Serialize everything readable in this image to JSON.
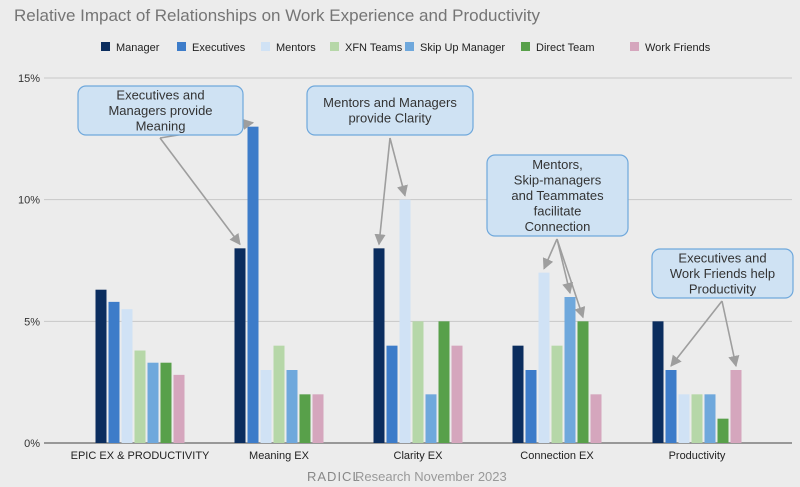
{
  "chart_data": {
    "type": "bar",
    "title": "Relative Impact of Relationships on Work Experience and Productivity",
    "categories": [
      "EPIC EX & PRODUCTIVITY",
      "Meaning EX",
      "Clarity EX",
      "Connection EX",
      "Productivity"
    ],
    "series": [
      {
        "name": "Manager",
        "color": "#0b2d5e",
        "values": [
          6.3,
          8,
          8,
          4,
          5
        ]
      },
      {
        "name": "Executives",
        "color": "#3d7cc9",
        "values": [
          5.8,
          13,
          4,
          3,
          3
        ]
      },
      {
        "name": "Mentors",
        "color": "#d0e2f5",
        "values": [
          5.5,
          3,
          10,
          7,
          2
        ]
      },
      {
        "name": "XFN Teams",
        "color": "#b6d7a8",
        "values": [
          3.8,
          4,
          5,
          4,
          2
        ]
      },
      {
        "name": "Skip  Up Manager",
        "color": "#6fa8dc",
        "values": [
          3.3,
          3,
          2,
          6,
          2
        ]
      },
      {
        "name": "Direct Team",
        "color": "#58a04a",
        "values": [
          3.3,
          2,
          5,
          5,
          1
        ]
      },
      {
        "name": "Work Friends",
        "color": "#d5a6bd",
        "values": [
          2.8,
          2,
          4,
          2,
          3
        ]
      }
    ],
    "y_ticks": [
      "0%",
      "5%",
      "10%",
      "15%"
    ],
    "ylim": [
      0,
      15
    ],
    "grid": true,
    "legend_position": "top",
    "annotations": [
      {
        "lines": [
          "Executives and",
          "Managers provide",
          "Meaning"
        ],
        "targets": [
          {
            "category": 1,
            "series": 0
          },
          {
            "category": 1,
            "series": 1
          }
        ]
      },
      {
        "lines": [
          "Mentors and Managers",
          "provide Clarity"
        ],
        "targets": [
          {
            "category": 2,
            "series": 0
          },
          {
            "category": 2,
            "series": 2
          }
        ]
      },
      {
        "lines": [
          "Mentors,",
          "Skip-managers",
          "and Teammates",
          "facilitate",
          "Connection"
        ],
        "targets": [
          {
            "category": 3,
            "series": 2
          },
          {
            "category": 3,
            "series": 4
          },
          {
            "category": 3,
            "series": 5
          }
        ]
      },
      {
        "lines": [
          "Executives and",
          "Work Friends help",
          "Productivity"
        ],
        "targets": [
          {
            "category": 4,
            "series": 1
          },
          {
            "category": 4,
            "series": 6
          }
        ]
      }
    ]
  },
  "footer": {
    "brand": "RADICL",
    "text": "Research November 2023"
  }
}
